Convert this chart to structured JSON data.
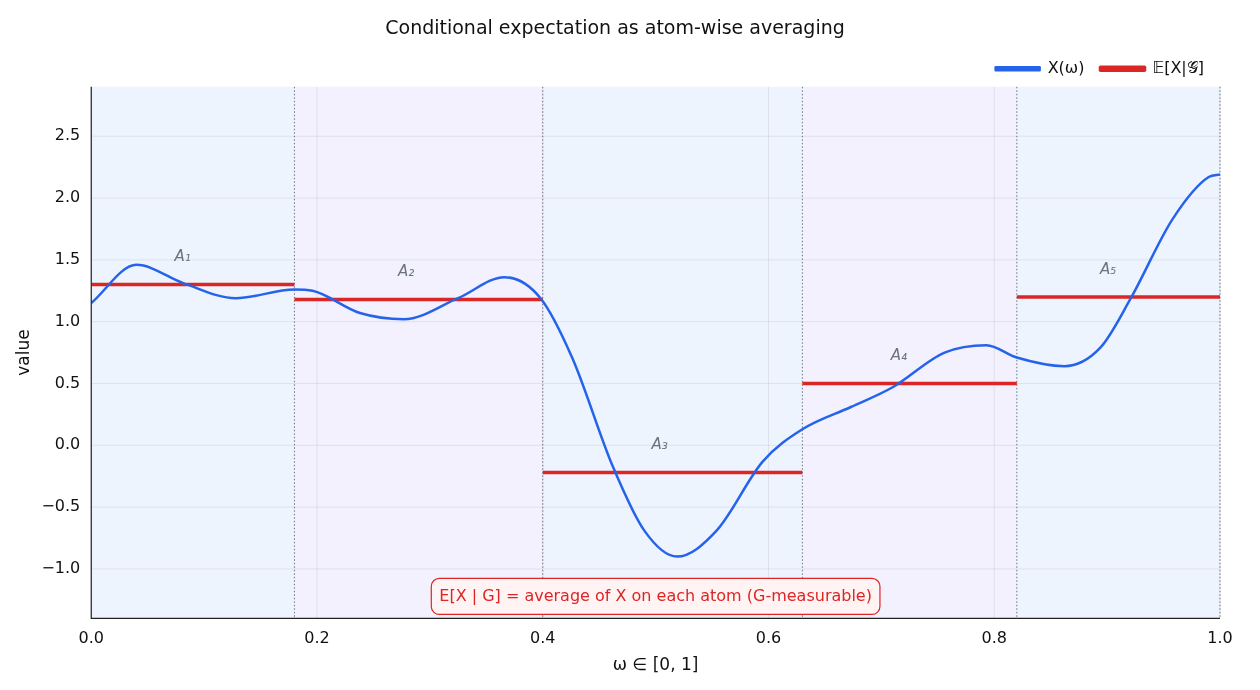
{
  "chart_data": {
    "type": "line",
    "title": "Conditional expectation as atom-wise averaging",
    "xlabel": "ω ∈ [0, 1]",
    "ylabel": "value",
    "xlim": [
      0,
      1
    ],
    "ylim": [
      -1.4,
      2.9
    ],
    "xticks": [
      {
        "value": 0,
        "label": "0.0"
      },
      {
        "value": 0.2,
        "label": "0.2"
      },
      {
        "value": 0.4,
        "label": "0.4"
      },
      {
        "value": 0.6,
        "label": "0.6"
      },
      {
        "value": 0.8,
        "label": "0.8"
      },
      {
        "value": 1,
        "label": "1.0"
      }
    ],
    "yticks": [
      {
        "value": -1,
        "label": "−1.0"
      },
      {
        "value": -0.5,
        "label": "−0.5"
      },
      {
        "value": 0,
        "label": "0.0"
      },
      {
        "value": 0.5,
        "label": "0.5"
      },
      {
        "value": 1,
        "label": "1.0"
      },
      {
        "value": 1.5,
        "label": "1.5"
      },
      {
        "value": 2,
        "label": "2.0"
      },
      {
        "value": 2.5,
        "label": "2.5"
      }
    ],
    "grid": true,
    "legend": "top right",
    "series": [
      {
        "name": "X(ω)",
        "color": "#2563eb",
        "x": [
          0,
          0.04,
          0.082,
          0.128,
          0.18,
          0.196,
          0.238,
          0.277,
          0.325,
          0.366,
          0.398,
          0.426,
          0.462,
          0.49,
          0.519,
          0.554,
          0.595,
          0.63,
          0.673,
          0.71,
          0.756,
          0.793,
          0.82,
          0.862,
          0.894,
          0.921,
          0.958,
          0.99,
          1.0
        ],
        "values": [
          1.15,
          1.46,
          1.31,
          1.19,
          1.26,
          1.25,
          1.07,
          1.02,
          1.19,
          1.36,
          1.19,
          0.71,
          -0.17,
          -0.69,
          -0.9,
          -0.69,
          -0.13,
          0.13,
          0.31,
          0.47,
          0.75,
          0.81,
          0.71,
          0.64,
          0.79,
          1.19,
          1.83,
          2.17,
          2.19
        ]
      },
      {
        "name": "𝔼[X|𝒢]",
        "color": "#dc2626",
        "x": [
          0,
          0.18,
          0.18,
          0.4,
          0.4,
          0.63,
          0.63,
          0.82,
          0.82,
          1.0
        ],
        "values": [
          1.3,
          1.3,
          1.18,
          1.18,
          -0.22,
          -0.22,
          0.5,
          0.5,
          1.2,
          1.2
        ]
      }
    ],
    "bands": [
      {
        "axis": "x",
        "from": 0,
        "to": 0.18,
        "color": "#eef4fe"
      },
      {
        "axis": "x",
        "from": 0.18,
        "to": 0.4,
        "color": "#f3f1fd"
      },
      {
        "axis": "x",
        "from": 0.4,
        "to": 0.63,
        "color": "#eef4fe"
      },
      {
        "axis": "x",
        "from": 0.63,
        "to": 0.82,
        "color": "#f3f1fd"
      },
      {
        "axis": "x",
        "from": 0.82,
        "to": 1.0,
        "color": "#eef4fe"
      }
    ],
    "ref_lines": [
      {
        "axis": "x",
        "value": 0.18,
        "color": "#6b7280",
        "line_style": "dotted"
      },
      {
        "axis": "x",
        "value": 0.4,
        "color": "#6b7280",
        "line_style": "dotted"
      },
      {
        "axis": "x",
        "value": 0.63,
        "color": "#6b7280",
        "line_style": "dotted"
      },
      {
        "axis": "x",
        "value": 0.82,
        "color": "#6b7280",
        "line_style": "dotted"
      },
      {
        "axis": "x",
        "value": 1.0,
        "color": "#6b7280",
        "line_style": "dotted"
      }
    ],
    "annotations": [
      "A₁",
      "A₂",
      "A₃",
      "A₄",
      "A₅",
      "E[X | G] = average of X on each atom (G-measurable)"
    ]
  }
}
